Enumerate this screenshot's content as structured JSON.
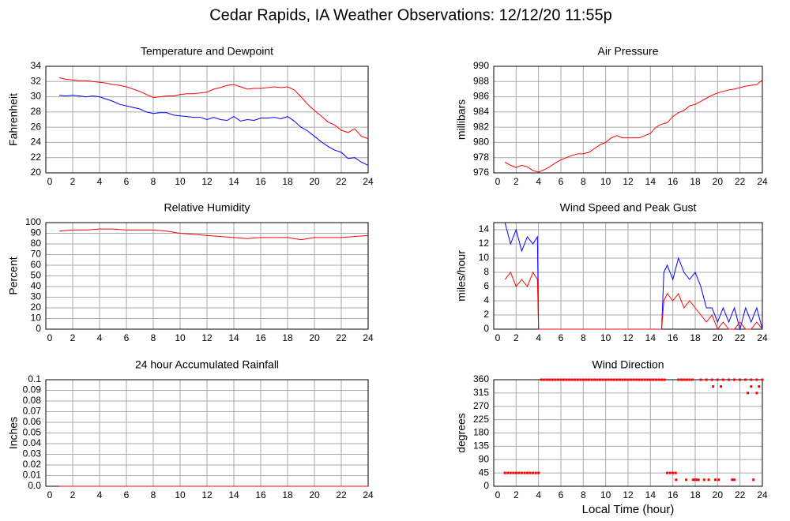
{
  "title": "Cedar Rapids, IA Weather Observations: 12/12/20 11:55p",
  "chart_data": [
    {
      "type": "line",
      "title": "Temperature and Dewpoint",
      "ylabel": "Fahrenheit",
      "x": [
        1,
        1.5,
        2,
        2.5,
        3,
        3.5,
        4,
        4.5,
        5,
        5.5,
        6,
        6.5,
        7,
        7.5,
        8,
        8.5,
        9,
        9.5,
        10,
        10.5,
        11,
        11.5,
        12,
        12.5,
        13,
        13.5,
        14,
        14.5,
        15,
        15.5,
        16,
        16.5,
        17,
        17.5,
        18,
        18.5,
        19,
        19.5,
        20,
        20.5,
        21,
        21.5,
        22,
        22.5,
        23,
        23.5,
        24
      ],
      "series": [
        {
          "color": "#ff0000",
          "values": [
            32.5,
            32.3,
            32.2,
            32.1,
            32.1,
            32.0,
            31.9,
            31.8,
            31.6,
            31.5,
            31.3,
            31.0,
            30.7,
            30.3,
            29.9,
            30.0,
            30.1,
            30.1,
            30.3,
            30.4,
            30.4,
            30.5,
            30.6,
            31.0,
            31.2,
            31.5,
            31.6,
            31.3,
            31.0,
            31.1,
            31.1,
            31.2,
            31.3,
            31.2,
            31.3,
            30.9,
            30.0,
            29.0,
            28.2,
            27.5,
            26.7,
            26.3,
            25.6,
            25.3,
            25.8,
            24.8,
            24.5
          ]
        },
        {
          "color": "#0000ff",
          "values": [
            30.2,
            30.1,
            30.2,
            30.1,
            30.0,
            30.1,
            30.0,
            29.7,
            29.4,
            29.0,
            28.8,
            28.6,
            28.4,
            28.0,
            27.8,
            27.9,
            27.9,
            27.6,
            27.5,
            27.4,
            27.3,
            27.3,
            27.0,
            27.3,
            27.0,
            26.9,
            27.4,
            26.8,
            27.0,
            26.9,
            27.2,
            27.2,
            27.3,
            27.1,
            27.4,
            26.8,
            26.0,
            25.5,
            24.8,
            24.1,
            23.5,
            23.0,
            22.7,
            21.9,
            22.0,
            21.4,
            21.0
          ]
        }
      ],
      "xlim": [
        0,
        24
      ],
      "xticks": [
        0,
        2,
        4,
        6,
        8,
        10,
        12,
        14,
        16,
        18,
        20,
        22,
        24
      ],
      "ylim": [
        20,
        34
      ],
      "yticks": [
        20,
        22,
        24,
        26,
        28,
        30,
        32,
        34
      ],
      "grid": true
    },
    {
      "type": "line",
      "title": "Air Pressure",
      "ylabel": "millibars",
      "x": [
        1,
        1.5,
        2,
        2.5,
        3,
        3.5,
        4,
        4.5,
        5,
        5.5,
        6,
        6.5,
        7,
        7.5,
        8,
        8.5,
        9,
        9.5,
        10,
        10.5,
        11,
        11.5,
        12,
        12.5,
        13,
        13.5,
        14,
        14.5,
        15,
        15.5,
        16,
        16.5,
        17,
        17.5,
        18,
        18.5,
        19,
        19.5,
        20,
        20.5,
        21,
        21.5,
        22,
        22.5,
        23,
        23.5,
        24
      ],
      "series": [
        {
          "color": "#ff0000",
          "values": [
            977.4,
            977.0,
            976.7,
            977.0,
            976.8,
            976.3,
            976.1,
            976.4,
            976.8,
            977.3,
            977.7,
            978.0,
            978.3,
            978.5,
            978.5,
            978.7,
            979.2,
            979.7,
            980.0,
            980.6,
            980.9,
            980.6,
            980.6,
            980.6,
            980.6,
            980.9,
            981.2,
            982.0,
            982.4,
            982.6,
            983.4,
            983.9,
            984.2,
            984.8,
            985.0,
            985.4,
            985.8,
            986.2,
            986.5,
            986.7,
            986.9,
            987.0,
            987.2,
            987.4,
            987.5,
            987.6,
            988.2
          ]
        }
      ],
      "xlim": [
        0,
        24
      ],
      "xticks": [
        0,
        2,
        4,
        6,
        8,
        10,
        12,
        14,
        16,
        18,
        20,
        22,
        24
      ],
      "ylim": [
        976,
        990
      ],
      "yticks": [
        976,
        978,
        980,
        982,
        984,
        986,
        988,
        990
      ],
      "grid": true
    },
    {
      "type": "line",
      "title": "Relative Humidity",
      "ylabel": "Percent",
      "x": [
        1,
        2,
        3,
        4,
        5,
        6,
        7,
        8,
        9,
        10,
        11,
        12,
        13,
        14,
        15,
        16,
        17,
        18,
        19,
        20,
        21,
        22,
        23,
        24
      ],
      "series": [
        {
          "color": "#ff0000",
          "values": [
            92,
            93,
            93,
            94,
            94,
            93,
            93,
            93,
            92,
            90,
            89,
            88,
            87,
            86,
            85,
            86,
            86,
            86,
            84,
            86,
            86,
            86,
            87,
            88
          ]
        }
      ],
      "xlim": [
        0,
        24
      ],
      "xticks": [
        0,
        2,
        4,
        6,
        8,
        10,
        12,
        14,
        16,
        18,
        20,
        22,
        24
      ],
      "ylim": [
        0,
        100
      ],
      "yticks": [
        0,
        10,
        20,
        30,
        40,
        50,
        60,
        70,
        80,
        90,
        100
      ],
      "grid": true
    },
    {
      "type": "line",
      "title": "Wind Speed and Peak Gust",
      "ylabel": "miles/hour",
      "x": [
        1,
        1.5,
        2,
        2.5,
        3,
        3.5,
        3.9,
        4,
        5,
        6,
        7,
        8,
        9,
        10,
        11,
        12,
        13,
        14,
        15,
        15.2,
        15.5,
        16,
        16.5,
        17,
        17.5,
        18,
        18.5,
        19,
        19.5,
        20,
        20.5,
        21,
        21.5,
        22,
        22.5,
        23,
        23.5,
        24
      ],
      "series": [
        {
          "color": "#0000ff",
          "values": [
            15,
            12,
            14,
            11,
            13,
            12,
            13,
            0,
            0,
            0,
            0,
            0,
            0,
            0,
            0,
            0,
            0,
            0,
            0,
            8,
            9,
            7,
            10,
            8,
            7,
            8,
            6,
            3,
            3,
            1,
            3,
            1,
            3,
            0,
            3,
            1,
            3,
            0
          ]
        },
        {
          "color": "#ff0000",
          "values": [
            7,
            8,
            6,
            7,
            6,
            8,
            7,
            0,
            0,
            0,
            0,
            0,
            0,
            0,
            0,
            0,
            0,
            0,
            0,
            4,
            5,
            4,
            5,
            3,
            4,
            3,
            2,
            1,
            2,
            0,
            1,
            0,
            0,
            1,
            0,
            0,
            1,
            0
          ]
        }
      ],
      "xlim": [
        0,
        24
      ],
      "xticks": [
        0,
        2,
        4,
        6,
        8,
        10,
        12,
        14,
        16,
        18,
        20,
        22,
        24
      ],
      "ylim": [
        0,
        15
      ],
      "yticks": [
        0,
        2,
        4,
        6,
        8,
        10,
        12,
        14
      ],
      "grid": true
    },
    {
      "type": "line",
      "title": "24 hour Accumulated Rainfall",
      "ylabel": "Inches",
      "x": [
        1,
        24
      ],
      "series": [
        {
          "color": "#ff0000",
          "values": [
            0,
            0
          ]
        }
      ],
      "xlim": [
        0,
        24
      ],
      "xticks": [
        0,
        2,
        4,
        6,
        8,
        10,
        12,
        14,
        16,
        18,
        20,
        22,
        24
      ],
      "ylim": [
        0,
        0.1
      ],
      "yticks": [
        {
          "value": 0,
          "label": "0.0"
        },
        0.01,
        0.02,
        0.03,
        0.04,
        0.05,
        0.06,
        0.07,
        0.08,
        0.09,
        0.1
      ],
      "grid": true
    },
    {
      "type": "scatter",
      "title": "Wind Direction",
      "ylabel": "degrees",
      "xlabel": "Local Time (hour)",
      "x": [
        1,
        1.25,
        1.5,
        1.75,
        2,
        2.25,
        2.5,
        2.75,
        3,
        3.25,
        3.5,
        3.75,
        4,
        4.25,
        4.5,
        4.75,
        5,
        5.25,
        5.5,
        5.75,
        6,
        6.25,
        6.5,
        6.75,
        7,
        7.25,
        7.5,
        7.75,
        8,
        8.25,
        8.5,
        8.75,
        9,
        9.25,
        9.5,
        9.75,
        10,
        10.25,
        10.5,
        10.75,
        11,
        11.25,
        11.5,
        11.75,
        12,
        12.25,
        12.5,
        12.75,
        13,
        13.25,
        13.5,
        13.75,
        14,
        14.25,
        14.5,
        14.75,
        15,
        15.25,
        15.5,
        15.75,
        16,
        16.25,
        16.5,
        16.3,
        16.75,
        17,
        17.2,
        17.25,
        17.5,
        17.8,
        17.75,
        18,
        18.1,
        18.5,
        18.3,
        18.8,
        19,
        19.5,
        19.2,
        19.6,
        19.8,
        20,
        20.1,
        20.3,
        20.5,
        21,
        21.3,
        21.5,
        21.5,
        22,
        22.5,
        22.7,
        23,
        23,
        23.2,
        23.5,
        23.7,
        23.5,
        24
      ],
      "series": [
        {
          "color": "#ff0000",
          "values": [
            45,
            45,
            45,
            45,
            45,
            45,
            45,
            45,
            45,
            45,
            45,
            45,
            45,
            360,
            360,
            360,
            360,
            360,
            360,
            360,
            360,
            360,
            360,
            360,
            360,
            360,
            360,
            360,
            360,
            360,
            360,
            360,
            360,
            360,
            360,
            360,
            360,
            360,
            360,
            360,
            360,
            360,
            360,
            360,
            360,
            360,
            360,
            360,
            360,
            360,
            360,
            360,
            360,
            360,
            360,
            360,
            360,
            360,
            45,
            45,
            45,
            45,
            360,
            22,
            360,
            360,
            22,
            360,
            360,
            22,
            360,
            22,
            22,
            360,
            22,
            22,
            360,
            360,
            22,
            337,
            22,
            360,
            22,
            337,
            360,
            360,
            22,
            22,
            360,
            360,
            360,
            315,
            337,
            360,
            22,
            315,
            337,
            360,
            360
          ]
        }
      ],
      "xlim": [
        0,
        24
      ],
      "xticks": [
        0,
        2,
        4,
        6,
        8,
        10,
        12,
        14,
        16,
        18,
        20,
        22,
        24
      ],
      "ylim": [
        0,
        360
      ],
      "yticks": [
        0,
        45,
        90,
        135,
        180,
        225,
        270,
        315,
        360
      ],
      "grid": true
    }
  ]
}
